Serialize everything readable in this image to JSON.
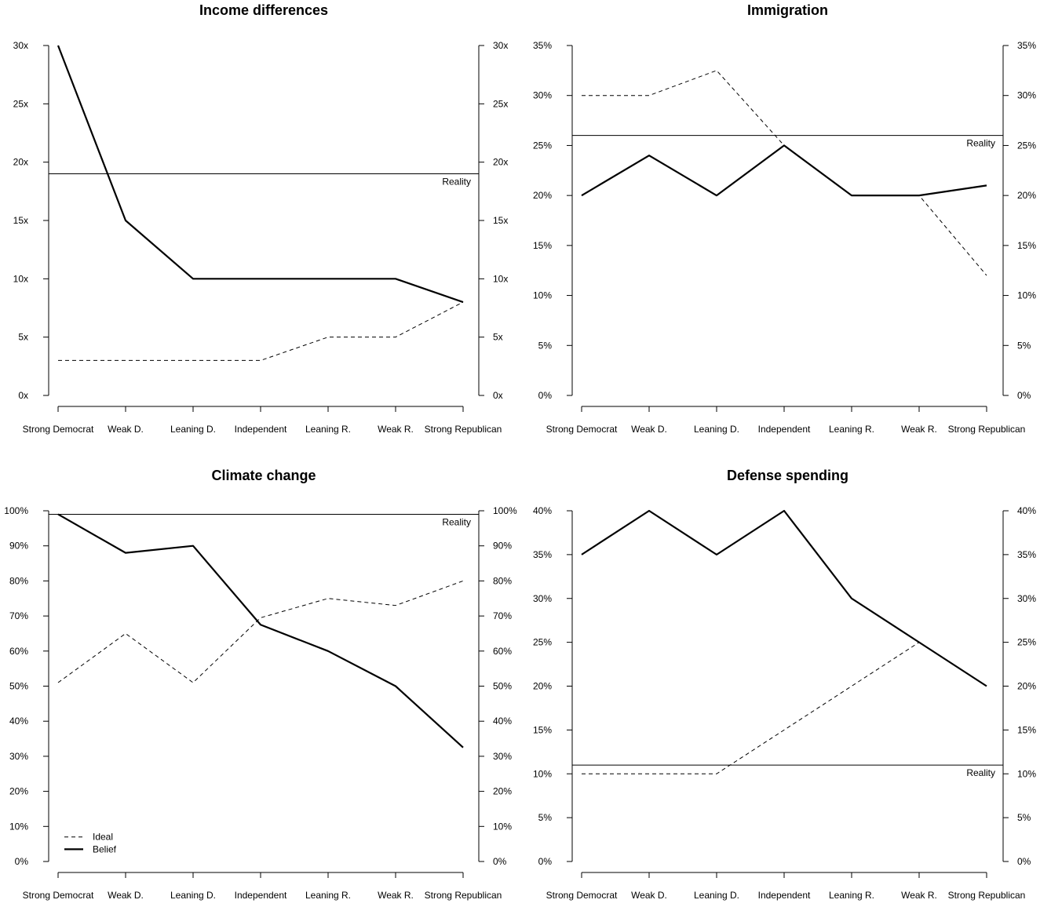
{
  "categories": [
    "Strong Democrat",
    "Weak D.",
    "Leaning D.",
    "Independent",
    "Leaning R.",
    "Weak R.",
    "Strong Republican"
  ],
  "legend": {
    "ideal_label": "Ideal",
    "belief_label": "Belief",
    "placement": "bottom-left of Climate change panel"
  },
  "reality_label": "Reality",
  "chart_data": [
    {
      "type": "line",
      "title": "Income differences",
      "categories": [
        "Strong Democrat",
        "Weak D.",
        "Leaning D.",
        "Independent",
        "Leaning R.",
        "Weak R.",
        "Strong Republican"
      ],
      "yticks": [
        0,
        5,
        10,
        15,
        20,
        25,
        30
      ],
      "tick_labels": [
        "0x",
        "5x",
        "10x",
        "15x",
        "20x",
        "25x",
        "30x"
      ],
      "ylim": [
        0,
        30
      ],
      "reality": 19,
      "series": [
        {
          "name": "Belief",
          "values": [
            30,
            15,
            10,
            10,
            10,
            10,
            8
          ]
        },
        {
          "name": "Ideal",
          "values": [
            3,
            3,
            3,
            3,
            5,
            5,
            8
          ]
        }
      ],
      "show_legend": false
    },
    {
      "type": "line",
      "title": "Immigration",
      "categories": [
        "Strong Democrat",
        "Weak D.",
        "Leaning D.",
        "Independent",
        "Leaning R.",
        "Weak R.",
        "Strong Republican"
      ],
      "yticks": [
        0,
        5,
        10,
        15,
        20,
        25,
        30,
        35
      ],
      "tick_labels": [
        "0%",
        "5%",
        "10%",
        "15%",
        "20%",
        "25%",
        "30%",
        "35%"
      ],
      "ylim": [
        0,
        35
      ],
      "reality": 26,
      "series": [
        {
          "name": "Belief",
          "values": [
            20,
            24,
            20,
            25,
            20,
            20,
            21
          ]
        },
        {
          "name": "Ideal",
          "values": [
            30,
            30,
            32.5,
            25,
            20,
            20,
            12
          ]
        }
      ],
      "show_legend": false
    },
    {
      "type": "line",
      "title": "Climate change",
      "categories": [
        "Strong Democrat",
        "Weak D.",
        "Leaning D.",
        "Independent",
        "Leaning R.",
        "Weak R.",
        "Strong Republican"
      ],
      "yticks": [
        0,
        10,
        20,
        30,
        40,
        50,
        60,
        70,
        80,
        90,
        100
      ],
      "tick_labels": [
        "0%",
        "10%",
        "20%",
        "30%",
        "40%",
        "50%",
        "60%",
        "70%",
        "80%",
        "90%",
        "100%"
      ],
      "ylim": [
        0,
        100
      ],
      "reality": 99,
      "series": [
        {
          "name": "Belief",
          "values": [
            99,
            88,
            90,
            67.5,
            60,
            50,
            32.5
          ]
        },
        {
          "name": "Ideal",
          "values": [
            51,
            65,
            51,
            69.5,
            75,
            73,
            80
          ]
        }
      ],
      "show_legend": true
    },
    {
      "type": "line",
      "title": "Defense spending",
      "categories": [
        "Strong Democrat",
        "Weak D.",
        "Leaning D.",
        "Independent",
        "Leaning R.",
        "Weak R.",
        "Strong Republican"
      ],
      "yticks": [
        0,
        5,
        10,
        15,
        20,
        25,
        30,
        35,
        40
      ],
      "tick_labels": [
        "0%",
        "5%",
        "10%",
        "15%",
        "20%",
        "25%",
        "30%",
        "35%",
        "40%"
      ],
      "ylim": [
        0,
        40
      ],
      "reality": 11,
      "series": [
        {
          "name": "Belief",
          "values": [
            35,
            40,
            35,
            40,
            30,
            25,
            20
          ]
        },
        {
          "name": "Ideal",
          "values": [
            10,
            10,
            10,
            15,
            20,
            25,
            20
          ]
        }
      ],
      "show_legend": false
    }
  ]
}
